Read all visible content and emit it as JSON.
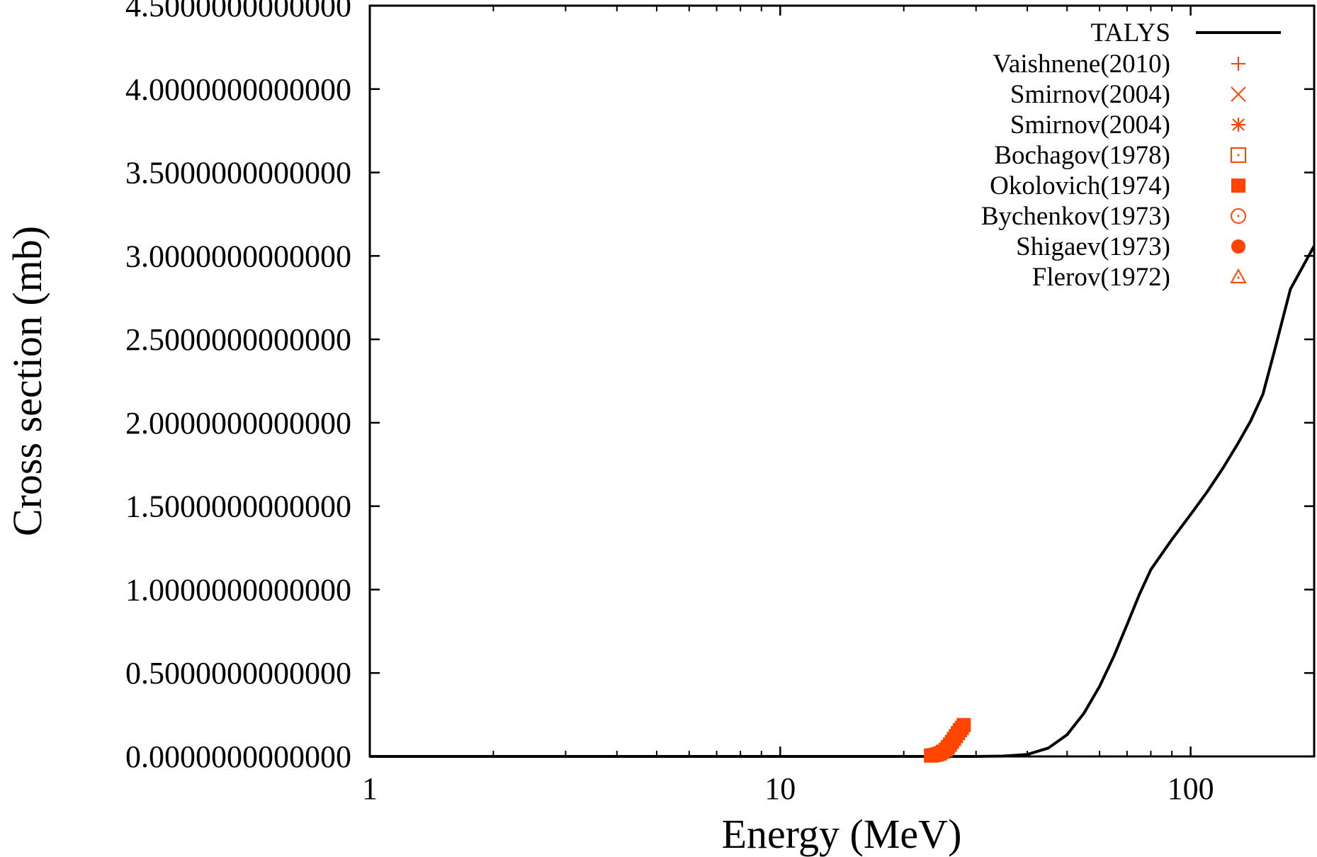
{
  "chart_data": {
    "type": "scatter",
    "xlabel": "Energy (MeV)",
    "ylabel": "Cross section (mb)",
    "xscale": "log",
    "xlim": [
      1,
      200
    ],
    "ylim": [
      0,
      4.5
    ],
    "x_ticks": [
      {
        "value": 1,
        "label": "1"
      },
      {
        "value": 10,
        "label": "10"
      },
      {
        "value": 100,
        "label": "100"
      }
    ],
    "y_ticks": [
      {
        "value": 0,
        "label": "0.0000000000000"
      },
      {
        "value": 0.5,
        "label": "0.5000000000000"
      },
      {
        "value": 1.0,
        "label": "1.0000000000000"
      },
      {
        "value": 1.5,
        "label": "1.5000000000000"
      },
      {
        "value": 2.0,
        "label": "2.0000000000000"
      },
      {
        "value": 2.5,
        "label": "2.5000000000000"
      },
      {
        "value": 3.0,
        "label": "3.0000000000000"
      },
      {
        "value": 3.5,
        "label": "3.5000000000000"
      },
      {
        "value": 4.0,
        "label": "4.0000000000000"
      },
      {
        "value": 4.5,
        "label": "4.5000000000000"
      }
    ],
    "grid": false,
    "legend_position": "top-right",
    "series": [
      {
        "name": "TALYS",
        "kind": "line",
        "color": "#000000",
        "x": [
          1,
          5,
          10,
          20,
          30,
          35,
          40,
          45,
          50,
          55,
          60,
          65,
          70,
          75,
          80,
          90,
          100,
          110,
          120,
          130,
          140,
          150,
          160,
          175,
          200
        ],
        "y": [
          0,
          0,
          0,
          0,
          0,
          0.002,
          0.012,
          0.05,
          0.13,
          0.26,
          0.42,
          0.6,
          0.79,
          0.97,
          1.12,
          1.3,
          1.45,
          1.59,
          1.73,
          1.87,
          2.01,
          2.17,
          2.43,
          2.8,
          3.06
        ]
      },
      {
        "name": "Vaishnene(2010)",
        "kind": "marker",
        "marker": "plus",
        "color": "#ff4500",
        "x": [],
        "y": []
      },
      {
        "name": "Smirnov(2004)",
        "kind": "marker",
        "marker": "cross",
        "color": "#ff4500",
        "x": [],
        "y": []
      },
      {
        "name": "Smirnov(2004)",
        "kind": "marker",
        "marker": "star",
        "color": "#ff4500",
        "x": [],
        "y": []
      },
      {
        "name": "Bochagov(1978)",
        "kind": "marker",
        "marker": "open-square",
        "color": "#ff4500",
        "x": [],
        "y": []
      },
      {
        "name": "Okolovich(1974)",
        "kind": "marker",
        "marker": "filled-square",
        "color": "#ff4500",
        "x": [
          23.3,
          23.7,
          24.1,
          24.5,
          24.9,
          25.3,
          25.6,
          25.9,
          26.2,
          26.5,
          26.8,
          27.1,
          27.4,
          27.7,
          28.0
        ],
        "y": [
          0.005,
          0.008,
          0.012,
          0.018,
          0.028,
          0.04,
          0.055,
          0.07,
          0.087,
          0.105,
          0.122,
          0.14,
          0.157,
          0.172,
          0.188
        ]
      },
      {
        "name": "Bychenkov(1973)",
        "kind": "marker",
        "marker": "open-circle",
        "color": "#ff4500",
        "x": [],
        "y": []
      },
      {
        "name": "Shigaev(1973)",
        "kind": "marker",
        "marker": "filled-circle",
        "color": "#ff4500",
        "x": [],
        "y": []
      },
      {
        "name": "Flerov(1972)",
        "kind": "marker",
        "marker": "open-triangle",
        "color": "#ff4500",
        "x": [],
        "y": []
      }
    ]
  }
}
